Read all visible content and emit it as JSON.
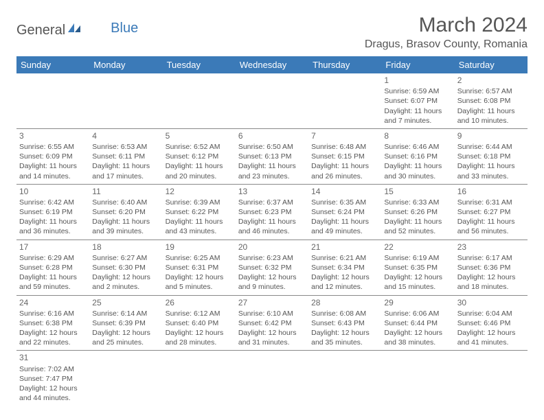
{
  "logo": {
    "text1": "General",
    "text2": "Blue"
  },
  "title": "March 2024",
  "location": "Dragus, Brasov County, Romania",
  "colors": {
    "header_bg": "#3b7ab8",
    "header_text": "#ffffff",
    "body_text": "#555555",
    "border": "#888888",
    "background": "#ffffff"
  },
  "weekdays": [
    "Sunday",
    "Monday",
    "Tuesday",
    "Wednesday",
    "Thursday",
    "Friday",
    "Saturday"
  ],
  "weeks": [
    [
      null,
      null,
      null,
      null,
      null,
      {
        "n": "1",
        "sr": "Sunrise: 6:59 AM",
        "ss": "Sunset: 6:07 PM",
        "dl": "Daylight: 11 hours and 7 minutes."
      },
      {
        "n": "2",
        "sr": "Sunrise: 6:57 AM",
        "ss": "Sunset: 6:08 PM",
        "dl": "Daylight: 11 hours and 10 minutes."
      }
    ],
    [
      {
        "n": "3",
        "sr": "Sunrise: 6:55 AM",
        "ss": "Sunset: 6:09 PM",
        "dl": "Daylight: 11 hours and 14 minutes."
      },
      {
        "n": "4",
        "sr": "Sunrise: 6:53 AM",
        "ss": "Sunset: 6:11 PM",
        "dl": "Daylight: 11 hours and 17 minutes."
      },
      {
        "n": "5",
        "sr": "Sunrise: 6:52 AM",
        "ss": "Sunset: 6:12 PM",
        "dl": "Daylight: 11 hours and 20 minutes."
      },
      {
        "n": "6",
        "sr": "Sunrise: 6:50 AM",
        "ss": "Sunset: 6:13 PM",
        "dl": "Daylight: 11 hours and 23 minutes."
      },
      {
        "n": "7",
        "sr": "Sunrise: 6:48 AM",
        "ss": "Sunset: 6:15 PM",
        "dl": "Daylight: 11 hours and 26 minutes."
      },
      {
        "n": "8",
        "sr": "Sunrise: 6:46 AM",
        "ss": "Sunset: 6:16 PM",
        "dl": "Daylight: 11 hours and 30 minutes."
      },
      {
        "n": "9",
        "sr": "Sunrise: 6:44 AM",
        "ss": "Sunset: 6:18 PM",
        "dl": "Daylight: 11 hours and 33 minutes."
      }
    ],
    [
      {
        "n": "10",
        "sr": "Sunrise: 6:42 AM",
        "ss": "Sunset: 6:19 PM",
        "dl": "Daylight: 11 hours and 36 minutes."
      },
      {
        "n": "11",
        "sr": "Sunrise: 6:40 AM",
        "ss": "Sunset: 6:20 PM",
        "dl": "Daylight: 11 hours and 39 minutes."
      },
      {
        "n": "12",
        "sr": "Sunrise: 6:39 AM",
        "ss": "Sunset: 6:22 PM",
        "dl": "Daylight: 11 hours and 43 minutes."
      },
      {
        "n": "13",
        "sr": "Sunrise: 6:37 AM",
        "ss": "Sunset: 6:23 PM",
        "dl": "Daylight: 11 hours and 46 minutes."
      },
      {
        "n": "14",
        "sr": "Sunrise: 6:35 AM",
        "ss": "Sunset: 6:24 PM",
        "dl": "Daylight: 11 hours and 49 minutes."
      },
      {
        "n": "15",
        "sr": "Sunrise: 6:33 AM",
        "ss": "Sunset: 6:26 PM",
        "dl": "Daylight: 11 hours and 52 minutes."
      },
      {
        "n": "16",
        "sr": "Sunrise: 6:31 AM",
        "ss": "Sunset: 6:27 PM",
        "dl": "Daylight: 11 hours and 56 minutes."
      }
    ],
    [
      {
        "n": "17",
        "sr": "Sunrise: 6:29 AM",
        "ss": "Sunset: 6:28 PM",
        "dl": "Daylight: 11 hours and 59 minutes."
      },
      {
        "n": "18",
        "sr": "Sunrise: 6:27 AM",
        "ss": "Sunset: 6:30 PM",
        "dl": "Daylight: 12 hours and 2 minutes."
      },
      {
        "n": "19",
        "sr": "Sunrise: 6:25 AM",
        "ss": "Sunset: 6:31 PM",
        "dl": "Daylight: 12 hours and 5 minutes."
      },
      {
        "n": "20",
        "sr": "Sunrise: 6:23 AM",
        "ss": "Sunset: 6:32 PM",
        "dl": "Daylight: 12 hours and 9 minutes."
      },
      {
        "n": "21",
        "sr": "Sunrise: 6:21 AM",
        "ss": "Sunset: 6:34 PM",
        "dl": "Daylight: 12 hours and 12 minutes."
      },
      {
        "n": "22",
        "sr": "Sunrise: 6:19 AM",
        "ss": "Sunset: 6:35 PM",
        "dl": "Daylight: 12 hours and 15 minutes."
      },
      {
        "n": "23",
        "sr": "Sunrise: 6:17 AM",
        "ss": "Sunset: 6:36 PM",
        "dl": "Daylight: 12 hours and 18 minutes."
      }
    ],
    [
      {
        "n": "24",
        "sr": "Sunrise: 6:16 AM",
        "ss": "Sunset: 6:38 PM",
        "dl": "Daylight: 12 hours and 22 minutes."
      },
      {
        "n": "25",
        "sr": "Sunrise: 6:14 AM",
        "ss": "Sunset: 6:39 PM",
        "dl": "Daylight: 12 hours and 25 minutes."
      },
      {
        "n": "26",
        "sr": "Sunrise: 6:12 AM",
        "ss": "Sunset: 6:40 PM",
        "dl": "Daylight: 12 hours and 28 minutes."
      },
      {
        "n": "27",
        "sr": "Sunrise: 6:10 AM",
        "ss": "Sunset: 6:42 PM",
        "dl": "Daylight: 12 hours and 31 minutes."
      },
      {
        "n": "28",
        "sr": "Sunrise: 6:08 AM",
        "ss": "Sunset: 6:43 PM",
        "dl": "Daylight: 12 hours and 35 minutes."
      },
      {
        "n": "29",
        "sr": "Sunrise: 6:06 AM",
        "ss": "Sunset: 6:44 PM",
        "dl": "Daylight: 12 hours and 38 minutes."
      },
      {
        "n": "30",
        "sr": "Sunrise: 6:04 AM",
        "ss": "Sunset: 6:46 PM",
        "dl": "Daylight: 12 hours and 41 minutes."
      }
    ],
    [
      {
        "n": "31",
        "sr": "Sunrise: 7:02 AM",
        "ss": "Sunset: 7:47 PM",
        "dl": "Daylight: 12 hours and 44 minutes."
      },
      null,
      null,
      null,
      null,
      null,
      null
    ]
  ]
}
